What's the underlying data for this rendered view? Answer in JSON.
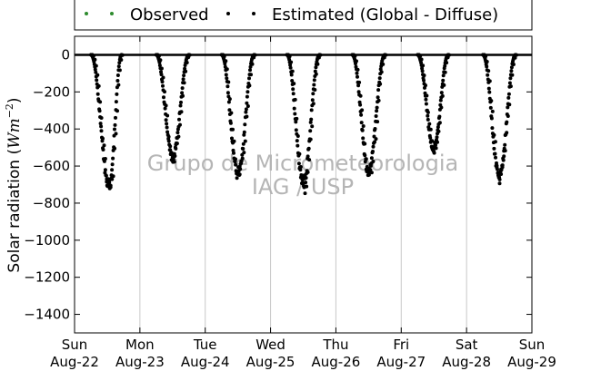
{
  "chart_data": {
    "type": "scatter",
    "title": "",
    "xlabel": "",
    "ylabel": "Solar radiation (W m^-2)",
    "ylim": [
      -1500,
      100
    ],
    "xlim": [
      0,
      7
    ],
    "y_ticks": [
      0,
      -200,
      -400,
      -600,
      -800,
      -1000,
      -1200,
      -1400
    ],
    "x_ticks": [
      {
        "x": 0,
        "day": "Sun",
        "date": "Aug-22"
      },
      {
        "x": 1,
        "day": "Mon",
        "date": "Aug-23"
      },
      {
        "x": 2,
        "day": "Tue",
        "date": "Aug-24"
      },
      {
        "x": 3,
        "day": "Wed",
        "date": "Aug-25"
      },
      {
        "x": 4,
        "day": "Thu",
        "date": "Aug-26"
      },
      {
        "x": 5,
        "day": "Fri",
        "date": "Aug-27"
      },
      {
        "x": 6,
        "day": "Sat",
        "date": "Aug-28"
      },
      {
        "x": 7,
        "day": "Sun",
        "date": "Aug-29"
      }
    ],
    "grid": "vertical",
    "legend_position": "top",
    "series": [
      {
        "name": "Observed",
        "color": "#2e8b2e",
        "x": [],
        "y": []
      },
      {
        "name": "Estimated (Global - Diffuse)",
        "color": "#000000",
        "daily_curves": [
          {
            "day": "Aug-22",
            "start": 0.25,
            "peak_x": 0.53,
            "peak_y": -715,
            "end": 0.72
          },
          {
            "day": "Aug-23",
            "start": 1.25,
            "peak_x": 1.5,
            "peak_y": -560,
            "end": 1.75
          },
          {
            "day": "Aug-24",
            "start": 2.25,
            "peak_x": 2.5,
            "peak_y": -650,
            "end": 2.75
          },
          {
            "day": "Aug-25",
            "start": 3.25,
            "peak_x": 3.5,
            "peak_y": -700,
            "end": 3.75
          },
          {
            "day": "Aug-26",
            "start": 4.25,
            "peak_x": 4.5,
            "peak_y": -630,
            "end": 4.75
          },
          {
            "day": "Aug-27",
            "start": 5.25,
            "peak_x": 5.5,
            "peak_y": -510,
            "end": 5.72
          },
          {
            "day": "Aug-28",
            "start": 6.25,
            "peak_x": 6.5,
            "peak_y": -660,
            "end": 6.75
          }
        ]
      }
    ]
  },
  "watermark": {
    "line1": "Grupo de Micrometeorologia",
    "line2": "IAG / USP"
  }
}
